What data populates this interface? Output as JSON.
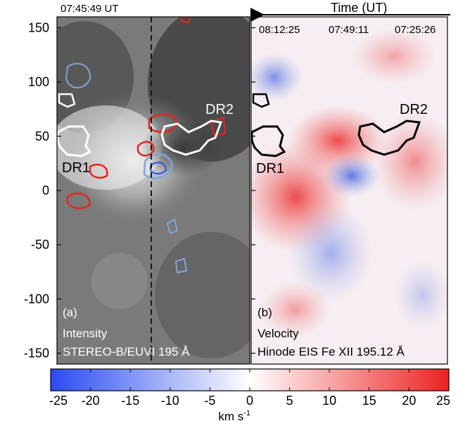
{
  "chart_data": {
    "type": "heatmap",
    "figure_description": "Two-panel solar active region comparison with shared y-axis and a diverging velocity colorbar",
    "y_axis": {
      "ylim": [
        -160,
        160
      ],
      "ticks": [
        150,
        100,
        50,
        0,
        -50,
        -100,
        -150
      ],
      "tick_labels": [
        "150",
        "100",
        "50",
        "0",
        "-50",
        "-100",
        "-150"
      ]
    },
    "time_axis": {
      "title": "Time (UT)",
      "direction": "right-to-left",
      "tick_labels": [
        "08:12:25",
        "07:49:11",
        "07:25:26"
      ]
    },
    "panels": [
      {
        "id": "a",
        "panel_label": "(a)",
        "quantity": "Intensity",
        "instrument": "STEREO-B/EUVI 195 Å",
        "timestamp": "07:45:49 UT",
        "colormap": "grayscale"
      },
      {
        "id": "b",
        "panel_label": "(b)",
        "quantity": "Velocity",
        "instrument": "Hinode EIS Fe XII 195.12 Å",
        "colormap": "blue-white-red"
      }
    ],
    "regions": [
      {
        "name": "DR1"
      },
      {
        "name": "DR2"
      }
    ],
    "contour_colors": {
      "redshift": "#e8231c",
      "blueshift": "#7fa6dd",
      "dimming_regions_a": "#ffffff",
      "dimming_regions_b": "#000000"
    },
    "colorbar": {
      "range": [
        -25,
        25
      ],
      "ticks": [
        -25,
        -20,
        -15,
        -10,
        -5,
        0,
        5,
        10,
        15,
        20,
        25
      ],
      "tick_labels": [
        "-25",
        "-20",
        "-15",
        "-10",
        "-5",
        "0",
        "5",
        "10",
        "15",
        "20",
        "25"
      ],
      "unit_label": "km s",
      "unit_exponent": "-1",
      "colors": [
        "#2a4bf0",
        "#ffffff",
        "#ec2222"
      ]
    }
  }
}
